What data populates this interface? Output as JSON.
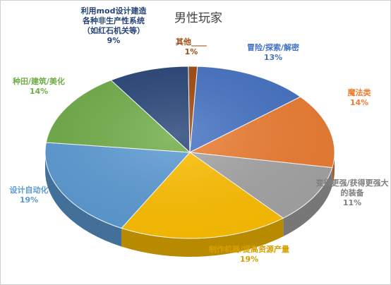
{
  "chart_data": {
    "type": "pie",
    "title": "男性玩家",
    "slices": [
      {
        "label": "冒险/探索/解密",
        "value": 13,
        "value_label": "13%",
        "color": "#4472c4"
      },
      {
        "label": "魔法类",
        "value": 14,
        "value_label": "14%",
        "color": "#ed7d31"
      },
      {
        "label": "变得更强/获得更强大的装备",
        "value": 11,
        "value_label": "11%",
        "color": "#a5a5a5"
      },
      {
        "label": "制作机器/提高资源产量",
        "value": 19,
        "value_label": "19%",
        "color": "#ffc000"
      },
      {
        "label": "设计自动化",
        "value": 19,
        "value_label": "19%",
        "color": "#5b9bd5"
      },
      {
        "label": "种田/建筑/美化",
        "value": 14,
        "value_label": "14%",
        "color": "#70ad47"
      },
      {
        "label": "利用mod设计建造各种非生产性系统（如红石机关等）",
        "value": 9,
        "value_label": "9%",
        "color": "#264478"
      },
      {
        "label": "其他____",
        "value": 1,
        "value_label": "1%",
        "color": "#9e480e"
      }
    ],
    "legend": "none",
    "label_placement": "outside"
  }
}
